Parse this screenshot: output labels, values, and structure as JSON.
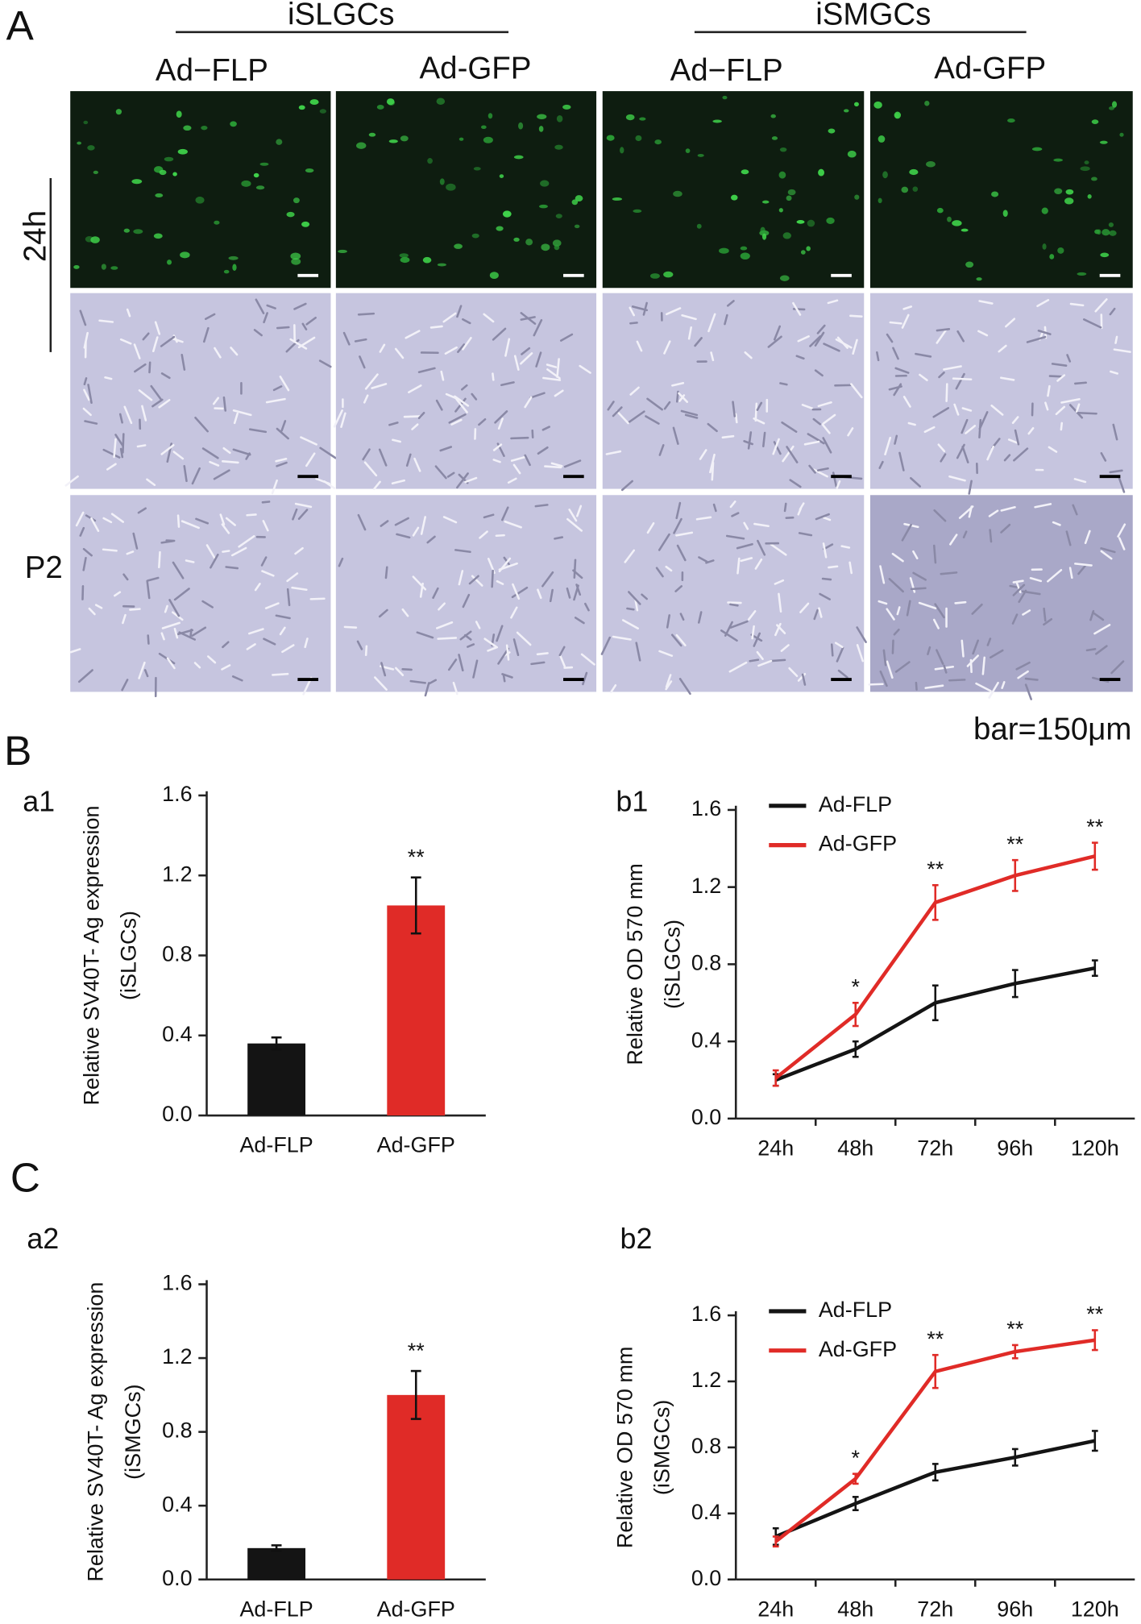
{
  "panel_a": {
    "label": "A",
    "groups": [
      "iSLGCs",
      "iSMGCs"
    ],
    "columns": [
      "Ad−FLP",
      "Ad-GFP",
      "Ad−FLP",
      "Ad-GFP"
    ],
    "rows": [
      "24h",
      "P2"
    ],
    "scale_note": "bar=150μm"
  },
  "panel_b_label": "B",
  "panel_c_label": "C",
  "chart_data": [
    {
      "type": "bar",
      "panel": "a1",
      "y_label": [
        "Relative SV40T- Ag expression",
        "(iSLGCs)"
      ],
      "categories": [
        "Ad-FLP",
        "Ad-GFP"
      ],
      "values": [
        0.36,
        1.05
      ],
      "errors": [
        0.03,
        0.14
      ],
      "colors": [
        "#141414",
        "#e02b27"
      ],
      "significance": [
        null,
        "**"
      ],
      "ylim": [
        0,
        1.6
      ],
      "yticks": [
        {
          "value": 0,
          "label": "0.0"
        },
        0.4,
        0.8,
        1.2,
        1.6
      ]
    },
    {
      "type": "line",
      "panel": "b1",
      "y_label": [
        "Relative OD 570 mm",
        "(iSLGCs)"
      ],
      "categories": [
        "24h",
        "48h",
        "72h",
        "96h",
        "120h"
      ],
      "series": [
        {
          "name": "Ad-FLP",
          "color": "#141414",
          "values": [
            0.2,
            0.36,
            0.6,
            0.7,
            0.78
          ],
          "errors": [
            0.03,
            0.04,
            0.09,
            0.07,
            0.04
          ]
        },
        {
          "name": "Ad-GFP",
          "color": "#e02b27",
          "values": [
            0.21,
            0.54,
            1.12,
            1.26,
            1.36
          ],
          "errors": [
            0.04,
            0.06,
            0.09,
            0.08,
            0.07
          ],
          "significance": [
            null,
            "*",
            "**",
            "**",
            "**"
          ]
        }
      ],
      "legend": "upper left",
      "ylim": [
        0,
        1.6
      ],
      "yticks": [
        {
          "value": 0,
          "label": "0.0"
        },
        0.4,
        0.8,
        1.2,
        1.6
      ]
    },
    {
      "type": "bar",
      "panel": "a2",
      "y_label": [
        "Relative SV40T- Ag expression",
        "(iSMGCs)"
      ],
      "categories": [
        "Ad-FLP",
        "Ad-GFP"
      ],
      "values": [
        0.17,
        1.0
      ],
      "errors": [
        0.015,
        0.13
      ],
      "colors": [
        "#141414",
        "#e02b27"
      ],
      "significance": [
        null,
        "**"
      ],
      "ylim": [
        0,
        1.6
      ],
      "yticks": [
        {
          "value": 0,
          "label": "0.0"
        },
        0.4,
        0.8,
        1.2,
        1.6
      ]
    },
    {
      "type": "line",
      "panel": "b2",
      "y_label": [
        "Relative OD 570 mm",
        "(iSMGCs)"
      ],
      "categories": [
        "24h",
        "48h",
        "72h",
        "96h",
        "120h"
      ],
      "series": [
        {
          "name": "Ad-FLP",
          "color": "#141414",
          "values": [
            0.26,
            0.46,
            0.65,
            0.74,
            0.84
          ],
          "errors": [
            0.05,
            0.04,
            0.05,
            0.05,
            0.06
          ]
        },
        {
          "name": "Ad-GFP",
          "color": "#e02b27",
          "values": [
            0.23,
            0.61,
            1.26,
            1.38,
            1.45
          ],
          "errors": [
            0.03,
            0.03,
            0.1,
            0.04,
            0.06
          ],
          "significance": [
            null,
            "*",
            "**",
            "**",
            "**"
          ]
        }
      ],
      "legend": "upper left",
      "ylim": [
        0,
        1.6
      ],
      "yticks": [
        {
          "value": 0,
          "label": "0.0"
        },
        0.4,
        0.8,
        1.2,
        1.6
      ]
    }
  ]
}
